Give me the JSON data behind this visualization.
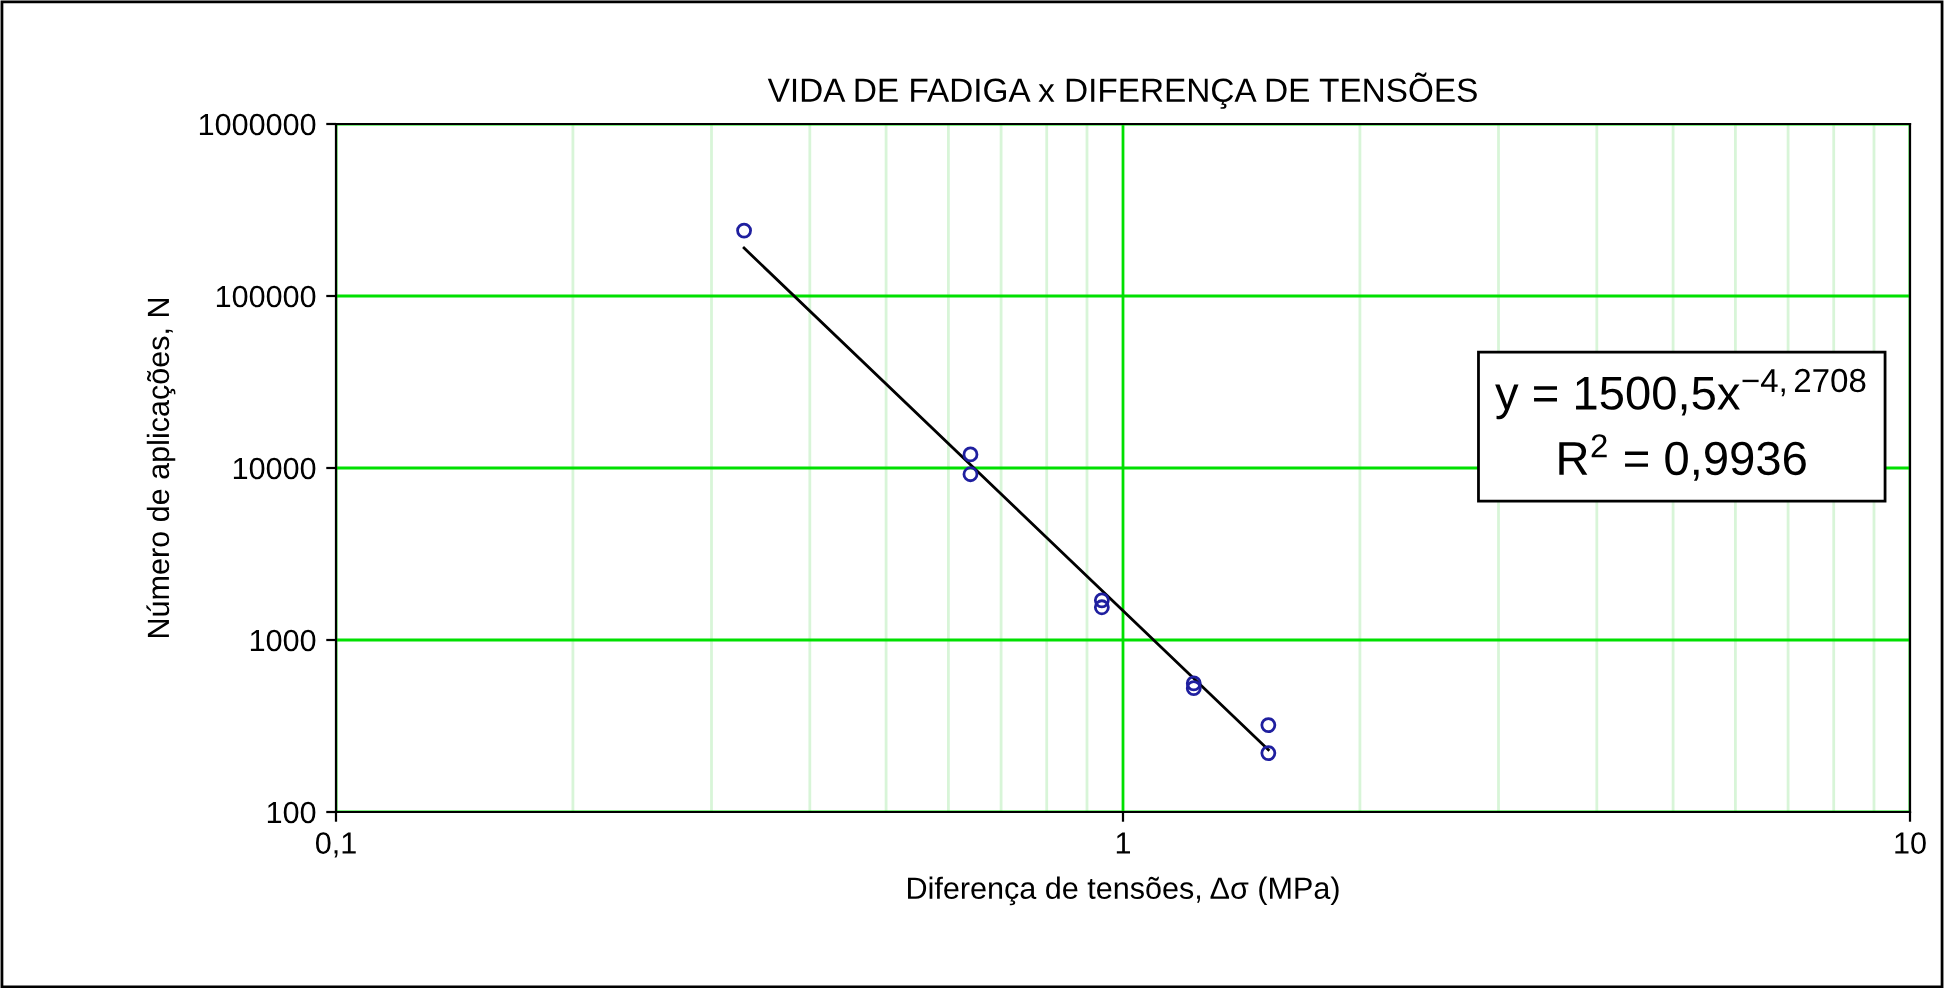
{
  "chart_data": {
    "type": "scatter",
    "title": "VIDA DE FADIGA x DIFERENÇA DE TENSÕES",
    "xlabel": "Diferença de tensões, Δσ (MPa)",
    "ylabel": "Número de aplicações, N",
    "series": [
      {
        "color": "#1f1f9f",
        "marker": "circle",
        "x": [
          0.33,
          0.64,
          0.64,
          0.94,
          0.94,
          1.23,
          1.23,
          1.53,
          1.53
        ],
        "values": [
          240000,
          12000,
          9200,
          1700,
          1550,
          560,
          525,
          320,
          220
        ]
      },
      {
        "type": "line",
        "color": "#000000",
        "marker": "none",
        "line_style": "solid",
        "x": [
          0.33,
          1.53
        ],
        "values": [
          190000,
          230
        ]
      }
    ],
    "annotations": [
      "y = 1500,5x$^{−4,2708}$",
      "R$^{2}$ = 0,9936"
    ],
    "log": "xy",
    "xlim": [
      0.1,
      10
    ],
    "ylim": [
      100,
      1000000
    ],
    "xticks": [
      {
        "value": 0.1,
        "label": "0,1"
      },
      1,
      10
    ],
    "yticks": [
      100,
      1000,
      10000,
      100000,
      1000000
    ],
    "grid": true,
    "legend": false
  }
}
